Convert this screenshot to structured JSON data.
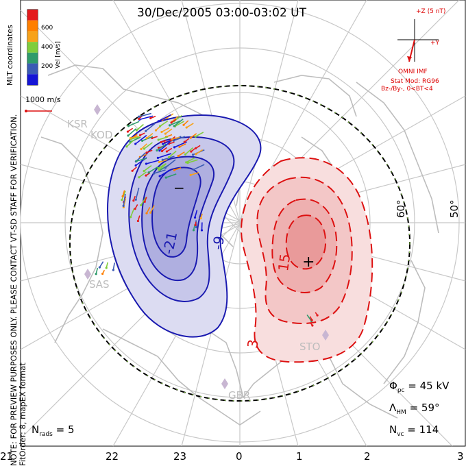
{
  "title": "30/Dec/2005 03:00-03:02 UT",
  "side_note": {
    "line1": "NOTE: FOR PREVIEW PURPOSES ONLY. PLEASE CONTACT VT-SD STAFF FOR VERIFICATION.",
    "line2": "FitOrder: 8, mapEX format"
  },
  "coord_label": "MLT coordinates",
  "legend": {
    "unit_label": "Vel [m/s]",
    "ticks": [
      "600",
      "400",
      "200"
    ],
    "colors": [
      "#e41a1c",
      "#ff7f00",
      "#f7a21b",
      "#7fcd3b",
      "#2f9b6b",
      "#3b5bb5",
      "#1515d6"
    ],
    "ref_vector_label": "1000 m/s"
  },
  "imf": {
    "z_label": "+Z (5 nT)",
    "y_label": "+Y",
    "source": "OMNI IMF",
    "model": "Stat Mod: RG96",
    "condition": "Bz-/By-, 0<BT<4"
  },
  "radars": [
    "KSR",
    "KOD",
    "SAS",
    "STO",
    "GBR"
  ],
  "latitude_labels": [
    "60°",
    "50°"
  ],
  "contours": {
    "negative_labels": [
      "-21",
      "-9"
    ],
    "positive_labels": [
      "15",
      "3"
    ],
    "min_marker": "−",
    "max_marker": "+"
  },
  "stats": {
    "nrads": "N",
    "nrads_sub": "rads",
    "nrads_value": "= 5",
    "phi": "Φ",
    "phi_sub": "pc",
    "phi_value": "= 45 kV",
    "lambda": "Λ",
    "lambda_sub": "HM",
    "lambda_value": "= 59°",
    "nvc": "N",
    "nvc_sub": "vc",
    "nvc_value": "= 114"
  },
  "mlt_ticks": [
    "21",
    "22",
    "23",
    "0",
    "1",
    "2",
    "3"
  ],
  "colors": {
    "negative": "#1a1ab0",
    "positive": "#dd1111",
    "grid": "#c8c8c8",
    "coast": "#bdbdbd"
  }
}
